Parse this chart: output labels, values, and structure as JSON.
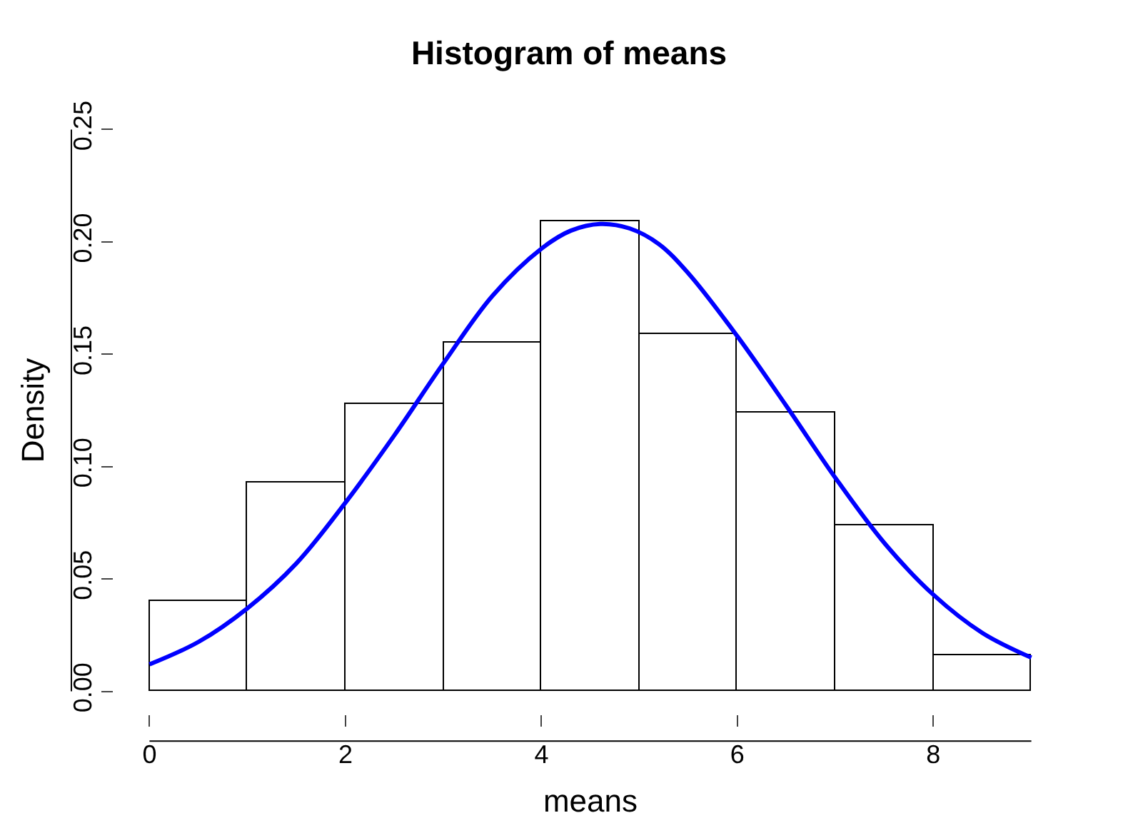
{
  "chart_data": {
    "type": "histogram",
    "title": "Histogram of means",
    "xlabel": "means",
    "ylabel": "Density",
    "bins": [
      0,
      1,
      2,
      3,
      4,
      5,
      6,
      7,
      8,
      9
    ],
    "values": [
      0.04,
      0.093,
      0.128,
      0.155,
      0.209,
      0.159,
      0.124,
      0.074,
      0.016
    ],
    "color": "#ffffff",
    "series": [
      {
        "type": "line",
        "color": "#0000ff",
        "x": [
          0,
          0.5,
          1,
          1.5,
          2,
          2.5,
          3,
          3.5,
          4,
          4.3,
          4.6,
          4.9,
          5.2,
          5.5,
          6,
          6.5,
          7,
          7.5,
          8,
          8.5,
          9
        ],
        "values": [
          0.012,
          0.022,
          0.037,
          0.057,
          0.084,
          0.114,
          0.146,
          0.176,
          0.197,
          0.205,
          0.208,
          0.206,
          0.199,
          0.186,
          0.158,
          0.127,
          0.095,
          0.066,
          0.043,
          0.026,
          0.015
        ]
      }
    ],
    "xlim": [
      0,
      9
    ],
    "xticks": [
      0,
      2,
      4,
      6,
      8
    ],
    "ylim": [
      0,
      0.25
    ],
    "yticks": [
      {
        "value": 0,
        "label": "0.00"
      },
      {
        "value": 0.05,
        "label": "0.05"
      },
      {
        "value": 0.1,
        "label": "0.10"
      },
      {
        "value": 0.15,
        "label": "0.15"
      },
      {
        "value": 0.2,
        "label": "0.20"
      },
      {
        "value": 0.25,
        "label": "0.25"
      }
    ]
  }
}
